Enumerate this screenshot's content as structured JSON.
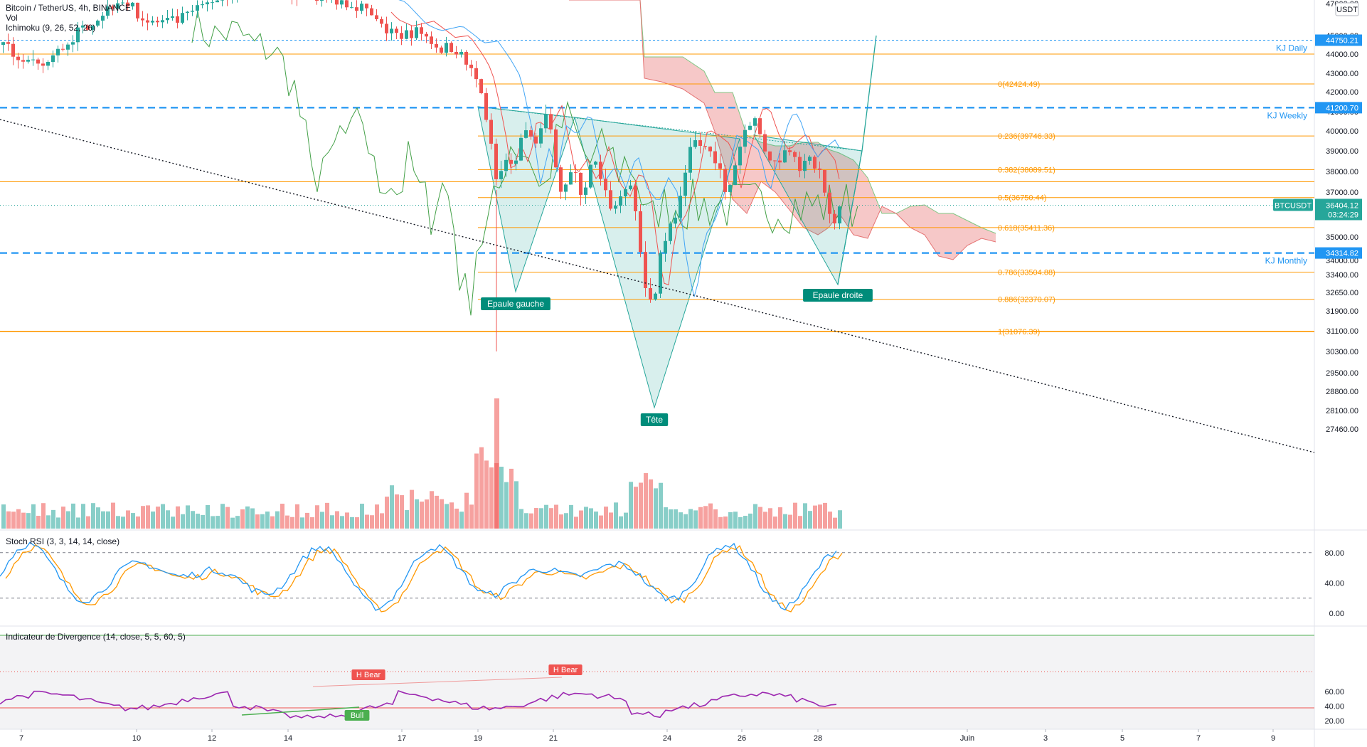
{
  "header": {
    "symbol_line": "Bitcoin / TetherUS, 4h, BINANCE",
    "vol_label": "Vol",
    "ichimoku_label": "Ichimoku (9, 26, 52, 26)"
  },
  "price_axis": {
    "currency": "USDT",
    "ticks": [
      "47000.00",
      "45000.00",
      "44000.00",
      "43000.00",
      "42000.00",
      "41000.00",
      "40000.00",
      "39000.00",
      "38000.00",
      "37000.00",
      "36000.00",
      "35000.00",
      "34000.00",
      "33400.00",
      "32650.00",
      "31900.00",
      "31100.00",
      "30300.00",
      "29500.00",
      "28800.00",
      "28100.00",
      "27460.00"
    ],
    "highlighted_labels": [
      {
        "text": "44750.21",
        "color": "#2196f3"
      },
      {
        "text": "41200.70",
        "color": "#2196f3"
      },
      {
        "text": "34314.82",
        "color": "#2196f3"
      },
      {
        "text": "36404.12",
        "color": "#26a69a"
      },
      {
        "text": "03:24:29",
        "color": "#26a69a"
      }
    ],
    "symbol_badge": "BTCUSDT"
  },
  "time_axis": {
    "labels": [
      "7",
      "10",
      "12",
      "14",
      "17",
      "19",
      "21",
      "24",
      "26",
      "28",
      "Juin",
      "3",
      "5",
      "7",
      "9"
    ]
  },
  "key_levels": [
    {
      "label": "KJ Daily",
      "price": 44750.21
    },
    {
      "label": "KJ Weekly",
      "price": 41200.7
    },
    {
      "label": "KJ Monthly",
      "price": 34314.82
    }
  ],
  "fibonacci": [
    {
      "label": "0(42424.49)",
      "level": 0,
      "price": 42424.49
    },
    {
      "label": "0.236(39746.33)",
      "level": 0.236,
      "price": 39746.33
    },
    {
      "label": "0.382(38089.51)",
      "level": 0.382,
      "price": 38089.51
    },
    {
      "label": "0.5(36750.44)",
      "level": 0.5,
      "price": 36750.44
    },
    {
      "label": "0.618(35411.36)",
      "level": 0.618,
      "price": 35411.36
    },
    {
      "label": "0.786(33504.88)",
      "level": 0.786,
      "price": 33504.88
    },
    {
      "label": "0.886(32370.07)",
      "level": 0.886,
      "price": 32370.07
    },
    {
      "label": "1(31076.39)",
      "level": 1,
      "price": 31076.39
    }
  ],
  "pattern_labels": {
    "left_shoulder": "Epaule gauche",
    "head": "Tête",
    "right_shoulder": "Epaule droite"
  },
  "stoch_rsi": {
    "title": "Stoch RSI (3, 3, 14, 14, close)",
    "ticks": [
      "80.00",
      "40.00",
      "0.00"
    ]
  },
  "divergence": {
    "title": "Indicateur de Divergence (14, close, 5, 5, 60, 5)",
    "ticks": [
      "60.00",
      "40.00",
      "20.00"
    ],
    "markers": [
      "H Bear",
      "H Bear",
      "Bull"
    ]
  },
  "colors": {
    "up": "#26a69a",
    "down": "#ef5350",
    "fib": "#ff9800",
    "kijun_level": "#2196f3",
    "pattern_fill": "#26a69a",
    "cloud_bear": "#ef9a9a",
    "cloud_bull": "#a5d6a7",
    "stoch_k": "#2196f3",
    "stoch_d": "#ff9800",
    "divergence_line": "#9c27b0"
  },
  "chart_data": {
    "type": "candlestick",
    "interval": "4h",
    "price_approx_path": [
      {
        "date": "May 17",
        "price": 44500
      },
      {
        "date": "May 18",
        "price": 43000
      },
      {
        "date": "May 19",
        "price": 41500
      },
      {
        "date": "May 19",
        "price": 31100
      },
      {
        "date": "May 20",
        "price": 35400
      },
      {
        "date": "May 20",
        "price": 40500
      },
      {
        "date": "May 21",
        "price": 36000
      },
      {
        "date": "May 22",
        "price": 37500
      },
      {
        "date": "May 23",
        "price": 31076
      },
      {
        "date": "May 24",
        "price": 35500
      },
      {
        "date": "May 25",
        "price": 39000
      },
      {
        "date": "May 26",
        "price": 40700
      },
      {
        "date": "May 27",
        "price": 38000
      },
      {
        "date": "May 28",
        "price": 35300
      },
      {
        "date": "May 28",
        "price": 36404
      }
    ],
    "current_price": 36404.12
  }
}
